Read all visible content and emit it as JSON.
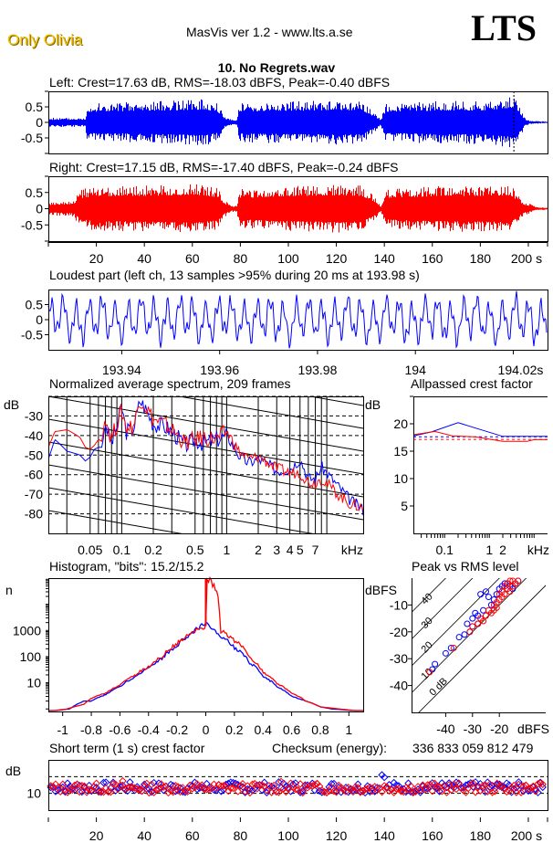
{
  "header": {
    "brand": "Only Olivia",
    "app_title": "MasVis ver 1.2 - www.lts.a.se",
    "logo": "LTS",
    "filename": "10. No Regrets.wav"
  },
  "colors": {
    "left": "#0000ff",
    "right": "#ff0000",
    "axis": "#000000",
    "brand": "#f0c000"
  },
  "chart_data": [
    {
      "id": "left-waveform",
      "type": "area",
      "title": "Left: Crest=17.63 dB, RMS=-18.03 dBFS, Peak=-0.40 dBFS",
      "series_color": "#0000ff",
      "ylim": [
        -1,
        1
      ],
      "xlim": [
        0,
        208
      ],
      "yticks": [
        "0.5",
        "0",
        "-0.5"
      ],
      "envelope_x": [
        0,
        15,
        15.5,
        30,
        50,
        65,
        70,
        73,
        76,
        78,
        79,
        100,
        120,
        130,
        135,
        138,
        140,
        160,
        180,
        193.5,
        194,
        196,
        198,
        200,
        208
      ],
      "envelope_amp": [
        0.15,
        0.15,
        0.62,
        0.65,
        0.7,
        0.75,
        0.6,
        0.2,
        0.1,
        0.1,
        0.65,
        0.68,
        0.72,
        0.7,
        0.35,
        0.12,
        0.62,
        0.68,
        0.7,
        0.85,
        0.9,
        0.5,
        0.15,
        0.06,
        0.02
      ],
      "marker_at": 193.98
    },
    {
      "id": "right-waveform",
      "type": "area",
      "title": "Right: Crest=17.15 dB, RMS=-17.40 dBFS, Peak=-0.24 dBFS",
      "series_color": "#ff0000",
      "ylim": [
        -1,
        1
      ],
      "xlim": [
        0,
        208
      ],
      "yticks": [
        "0.5",
        "0",
        "-0.5"
      ],
      "xticks": [
        "20",
        "40",
        "60",
        "80",
        "100",
        "120",
        "140",
        "160",
        "180",
        "200 s"
      ],
      "envelope_x": [
        0,
        10,
        13,
        20,
        40,
        60,
        70,
        73,
        76,
        78,
        79,
        100,
        120,
        130,
        135,
        138,
        140,
        160,
        180,
        192,
        196,
        198,
        200,
        203,
        208
      ],
      "envelope_amp": [
        0.2,
        0.25,
        0.6,
        0.7,
        0.72,
        0.78,
        0.65,
        0.25,
        0.1,
        0.12,
        0.6,
        0.7,
        0.75,
        0.72,
        0.4,
        0.1,
        0.6,
        0.7,
        0.72,
        0.75,
        0.35,
        0.2,
        0.15,
        0.05,
        0.03
      ]
    },
    {
      "id": "loudest-part",
      "type": "line",
      "title": "Loudest part (left  ch, 13 samples >95% during 20 ms at 193.98 s)",
      "series_color": "#0000ff",
      "ylim": [
        -1,
        1
      ],
      "xlim": [
        193.925,
        194.027
      ],
      "yticks": [
        "0.5",
        "0",
        "-0.5"
      ],
      "xticks": [
        "193.94",
        "193.96",
        "193.98",
        "194",
        "194.02s"
      ],
      "dominant_period_ms": 1.05
    },
    {
      "id": "average-spectrum",
      "type": "line",
      "title": "Normalized average spectrum, 209 frames",
      "ylabel": "dB",
      "xlabel": "kHz",
      "ylim": [
        -90,
        -20
      ],
      "xlim_khz": [
        0.02,
        20
      ],
      "yticks": [
        "-30",
        "-40",
        "-50",
        "-60",
        "-70",
        "-80"
      ],
      "xticks": [
        "0.05",
        "0.1",
        "0.2",
        "0.5",
        "1",
        "2",
        "3",
        "4",
        "5",
        "7",
        "kHz"
      ],
      "series": [
        {
          "name": "Left",
          "color": "#0000ff",
          "x_khz": [
            0.02,
            0.023,
            0.03,
            0.04,
            0.045,
            0.05,
            0.055,
            0.06,
            0.065,
            0.07,
            0.075,
            0.08,
            0.09,
            0.1,
            0.11,
            0.13,
            0.15,
            0.2,
            0.25,
            0.3,
            0.4,
            0.5,
            0.6,
            0.8,
            1.0,
            1.3,
            1.6,
            2,
            3,
            4,
            5,
            6,
            7,
            8,
            10,
            12,
            15,
            20
          ],
          "db": [
            -52,
            -42,
            -48,
            -50,
            -53,
            -51,
            -47,
            -46,
            -46,
            -33,
            -40,
            -44,
            -35,
            -25,
            -38,
            -36,
            -22,
            -34,
            -35,
            -38,
            -45,
            -42,
            -44,
            -42,
            -40,
            -50,
            -54,
            -52,
            -58,
            -57,
            -52,
            -62,
            -62,
            -56,
            -62,
            -67,
            -73,
            -78
          ]
        },
        {
          "name": "Right",
          "color": "#ff0000",
          "x_khz": [
            0.02,
            0.023,
            0.03,
            0.04,
            0.045,
            0.05,
            0.055,
            0.06,
            0.065,
            0.07,
            0.075,
            0.08,
            0.09,
            0.1,
            0.11,
            0.13,
            0.15,
            0.2,
            0.25,
            0.3,
            0.4,
            0.5,
            0.6,
            0.8,
            1.0,
            1.3,
            1.6,
            2,
            3,
            4,
            5,
            6,
            7,
            8,
            10,
            12,
            15,
            20
          ],
          "db": [
            -46,
            -38,
            -37,
            -41,
            -46,
            -47,
            -45,
            -42,
            -43,
            -29,
            -38,
            -41,
            -34,
            -27,
            -36,
            -35,
            -21,
            -32,
            -34,
            -37,
            -44,
            -42,
            -41,
            -42,
            -38,
            -48,
            -52,
            -51,
            -57,
            -59,
            -59,
            -64,
            -64,
            -62,
            -67,
            -71,
            -75,
            -77
          ]
        }
      ]
    },
    {
      "id": "allpassed-crest-factor",
      "type": "line",
      "title": "Allpassed crest factor",
      "ylabel": "dB",
      "xlabel": "kHz",
      "ylim": [
        0,
        25
      ],
      "xlim_khz": [
        0.02,
        20
      ],
      "yticks": [
        "20",
        "15",
        "10",
        "5"
      ],
      "xticks": [
        "0.1",
        "1",
        "2",
        "kHz"
      ],
      "series": [
        {
          "name": "Left",
          "color": "#0000ff",
          "x_khz": [
            0.02,
            0.05,
            0.2,
            0.5,
            2,
            20
          ],
          "db": [
            17.8,
            18.5,
            20.2,
            19.2,
            17.7,
            17.7
          ],
          "reference_db": 17.63
        },
        {
          "name": "Right",
          "color": "#ff0000",
          "x_khz": [
            0.02,
            0.06,
            0.15,
            0.5,
            2,
            7,
            10,
            20
          ],
          "db": [
            18.0,
            18.6,
            17.8,
            17.6,
            16.8,
            16.8,
            17.1,
            17.1
          ],
          "reference_db": 17.15
        }
      ]
    },
    {
      "id": "histogram",
      "type": "line",
      "title": "Histogram, \"bits\": 15.2/15.2",
      "ylabel": "n",
      "yscale": "log",
      "ylim": [
        1,
        100000
      ],
      "xlim": [
        -1.1,
        1.1
      ],
      "yticks": [
        "1000",
        "100",
        "10"
      ],
      "xticks": [
        "-1",
        "-0.8",
        "-0.6",
        "-0.4",
        "-0.2",
        "0",
        "0.2",
        "0.4",
        "0.6",
        "0.8",
        "1"
      ],
      "series": [
        {
          "name": "Left",
          "color": "#0000ff",
          "x": [
            -1.1,
            -0.95,
            -0.85,
            -0.8,
            -0.7,
            -0.6,
            -0.5,
            -0.4,
            -0.3,
            -0.2,
            -0.1,
            0,
            0.1,
            0.2,
            0.3,
            0.4,
            0.5,
            0.6,
            0.7,
            0.8,
            0.88,
            1.1
          ],
          "n": [
            0.8,
            1,
            2,
            2,
            3.5,
            7,
            16,
            35,
            90,
            250,
            700,
            1800,
            600,
            220,
            60,
            17,
            7,
            3,
            2,
            1.2,
            1,
            0.8
          ]
        },
        {
          "name": "Right",
          "color": "#ff0000",
          "x": [
            -1.1,
            -0.97,
            -0.85,
            -0.8,
            -0.7,
            -0.6,
            -0.5,
            -0.4,
            -0.3,
            -0.2,
            -0.1,
            0,
            0.01,
            0.1,
            0.2,
            0.3,
            0.4,
            0.5,
            0.6,
            0.7,
            0.8,
            0.93,
            1.1
          ],
          "n": [
            0.8,
            1,
            1.5,
            2.5,
            4,
            8,
            18,
            40,
            100,
            300,
            800,
            1500,
            100000,
            1000,
            400,
            90,
            25,
            9,
            4,
            2,
            1.2,
            1,
            0.8
          ]
        }
      ]
    },
    {
      "id": "peak-vs-rms",
      "type": "scatter",
      "title": "Peak vs RMS level",
      "ylabel": "dBFS",
      "xlabel": "dBFS",
      "xlim": [
        -50,
        0
      ],
      "ylim": [
        -50,
        0
      ],
      "yticks": [
        "-10",
        "-20",
        "-30",
        "-40"
      ],
      "xticks": [
        "-40",
        "-30",
        "-20",
        "dBFS"
      ],
      "crest_lines": [
        "0 dB",
        "10",
        "20",
        "30",
        "40"
      ],
      "series": [
        {
          "name": "Left",
          "color": "#0000ff",
          "rms": [
            -45,
            -44,
            -40,
            -38,
            -35,
            -33,
            -32,
            -31,
            -30,
            -30,
            -29,
            -28,
            -28,
            -27,
            -26,
            -25,
            -24,
            -23,
            -22,
            -21,
            -20,
            -19,
            -18,
            -17,
            -16,
            -15,
            -14,
            -13
          ],
          "peak": [
            -34,
            -32,
            -28,
            -26,
            -22,
            -21,
            -17,
            -20,
            -15,
            -18,
            -13,
            -14,
            -17,
            -6,
            -12,
            -5,
            -7,
            -10,
            -8,
            -6,
            -4,
            -3,
            -2,
            -2,
            -3,
            -4,
            -2,
            -1
          ]
        },
        {
          "name": "Right",
          "color": "#ff0000",
          "rms": [
            -46,
            -37,
            -31,
            -30,
            -28,
            -27,
            -26,
            -25,
            -24,
            -23,
            -22,
            -21,
            -21,
            -20,
            -19,
            -19,
            -18,
            -18,
            -17,
            -17,
            -16,
            -16,
            -15,
            -15,
            -14,
            -13,
            -20,
            -22
          ],
          "peak": [
            -35,
            -26,
            -20,
            -18,
            -17,
            -15,
            -16,
            -14,
            -12,
            -13,
            -10,
            -9,
            -11,
            -8,
            -7,
            -5,
            -6,
            -3,
            -4,
            -2,
            -5,
            -1,
            -3,
            -1,
            -2,
            -1,
            -6,
            -12
          ]
        }
      ]
    },
    {
      "id": "short-term-crest",
      "type": "scatter",
      "title": "Short term (1 s) crest factor",
      "checksum_label": "Checksum (energy):",
      "checksum_value": "336 833 059 812 479",
      "ylabel": "dB",
      "ylim": [
        5,
        20
      ],
      "xlim": [
        0,
        208
      ],
      "yticks": [
        "10"
      ],
      "dashed_at": [
        10,
        15
      ],
      "xticks": [
        "20",
        "40",
        "60",
        "80",
        "100",
        "120",
        "140",
        "160",
        "180",
        "200 s"
      ],
      "series": [
        {
          "name": "Left",
          "color": "#0000ff",
          "seed": 7,
          "mean": 11.8,
          "spread": 1.0,
          "outliers": [
            {
              "t": 139,
              "db": 15.5
            },
            {
              "t": 140,
              "db": 14.8
            }
          ]
        },
        {
          "name": "Right",
          "color": "#ff0000",
          "seed": 13,
          "mean": 11.6,
          "spread": 0.9,
          "outliers": [
            {
              "t": 31,
              "db": 13.7
            },
            {
              "t": 97,
              "db": 13.5
            }
          ]
        }
      ]
    }
  ]
}
